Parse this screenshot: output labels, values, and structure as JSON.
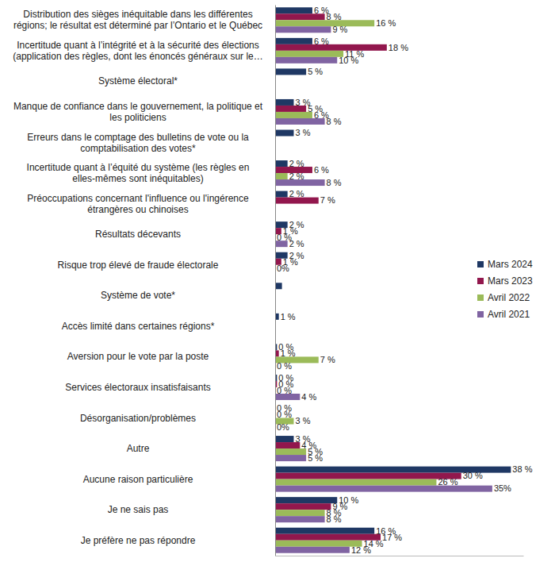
{
  "chart_data": {
    "type": "bar",
    "orientation": "horizontal",
    "data_labels": true,
    "tick_labels": "y",
    "legend": "right",
    "grid": false,
    "xlim": [
      0,
      40
    ],
    "xticks": [],
    "categories": [
      "Distribution des sièges inéquitable dans les différentes régions; le résultat est déterminé par l’Ontario et le Québec",
      "Incertitude quant à l’intégrité et à la sécurité des élections (application des règles, dont les énoncés généraux sur le…",
      "Système électoral*",
      "Manque de confiance dans le gouvernement, la politique et les politiciens",
      "Erreurs dans le comptage des bulletins de vote ou la comptabilisation des votes*",
      "Incertitude quant à l’équité du système (les règles en elles-mêmes sont inéquitables)",
      "Préoccupations concernant l'influence ou l'ingérence étrangères ou chinoises",
      "Résultats décevants",
      "Risque trop élevé de fraude électorale",
      "Système de vote*",
      "Accès limité dans certaines régions*",
      "Aversion pour le vote par la poste",
      "Services électoraux insatisfaisants",
      "Désorganisation/problèmes",
      "Autre",
      "Aucune raison particulière",
      "Je ne sais pas",
      "Je préfère ne pas répondre"
    ],
    "series": [
      {
        "name": "Mars 2024",
        "color": "#1f3864",
        "values": [
          6,
          6,
          5,
          3,
          3,
          2,
          2,
          2,
          2,
          1.1,
          0.6,
          0.3,
          0.3,
          0,
          3,
          38,
          10,
          16
        ],
        "value_labels": [
          "6 %",
          "6 %",
          "5 %",
          "3 %",
          "3 %",
          "2 %",
          "2 %",
          "2 %",
          "2 %",
          null,
          "1 %",
          "0 %",
          "0 %",
          "0 %",
          "3 %",
          "38 %",
          "10 %",
          "16 %"
        ]
      },
      {
        "name": "Mars 2023",
        "color": "#92174d",
        "values": [
          8,
          18,
          null,
          5,
          null,
          6,
          7,
          1,
          1,
          null,
          null,
          0.6,
          0.3,
          0,
          4,
          30,
          9,
          17
        ],
        "value_labels": [
          "8 %",
          "18 %",
          null,
          "5 %",
          null,
          "6 %",
          "7 %",
          "1 %",
          "1 %",
          null,
          null,
          "1 %",
          "0 %",
          "0 %",
          "4 %",
          "30 %",
          "9 %",
          "17 %"
        ]
      },
      {
        "name": "Avril 2022",
        "color": "#9bbb59",
        "values": [
          16,
          11,
          null,
          6,
          null,
          2,
          null,
          0,
          0,
          null,
          null,
          7,
          0,
          3,
          5,
          26,
          8,
          14
        ],
        "value_labels": [
          "16 %",
          "11 %",
          null,
          "6 %",
          null,
          "2 %",
          null,
          "0 %",
          "0%",
          null,
          null,
          "7 %",
          "0 %",
          "3 %",
          "5 %",
          "26 %",
          "8 %",
          "14 %"
        ]
      },
      {
        "name": "Avril 2021",
        "color": "#8064a2",
        "values": [
          9,
          10,
          null,
          8,
          null,
          8,
          null,
          2,
          null,
          null,
          null,
          0,
          4,
          0,
          5,
          35,
          8,
          12
        ],
        "value_labels": [
          "9 %",
          "10 %",
          null,
          "8 %",
          null,
          "8 %",
          null,
          "2 %",
          null,
          null,
          null,
          "0 %",
          "4 %",
          "0%",
          "5 %",
          "35%",
          "8 %",
          "12 %"
        ]
      }
    ]
  }
}
